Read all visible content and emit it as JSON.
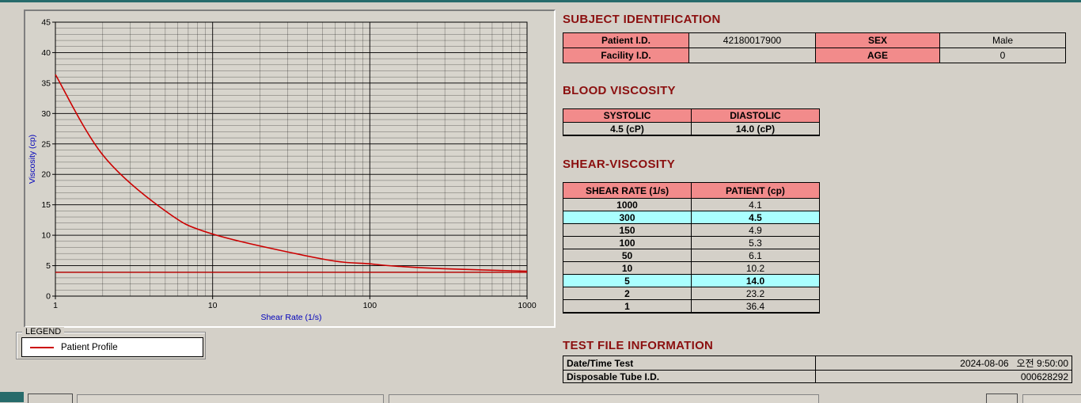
{
  "colors": {
    "section_title": "#8b0f0f",
    "table_header_bg": "#f28b8b",
    "highlight_bg": "#aaffff",
    "curve_red": "#cc0000",
    "axis_label_blue": "#0000bb",
    "window_bg": "#d4d0c8",
    "edge_teal": "#276b6b"
  },
  "legend": {
    "box_label": "LEGEND",
    "series_label": "Patient Profile"
  },
  "subject_identification": {
    "title": "SUBJECT IDENTIFICATION",
    "rows": [
      {
        "label1": "Patient I.D.",
        "value1": "42180017900",
        "label2": "SEX",
        "value2": "Male"
      },
      {
        "label1": "Facility I.D.",
        "value1": "",
        "label2": "AGE",
        "value2": "0"
      }
    ]
  },
  "blood_viscosity": {
    "title": "BLOOD VISCOSITY",
    "headers": [
      "SYSTOLIC",
      "DIASTOLIC"
    ],
    "values": [
      "4.5 (cP)",
      "14.0 (cP)"
    ]
  },
  "shear_viscosity": {
    "title": "SHEAR-VISCOSITY",
    "headers": [
      "SHEAR RATE (1/s)",
      "PATIENT (cp)"
    ],
    "rows": [
      {
        "rate": "1000",
        "value": "4.1",
        "highlight": false
      },
      {
        "rate": "300",
        "value": "4.5",
        "highlight": true
      },
      {
        "rate": "150",
        "value": "4.9",
        "highlight": false
      },
      {
        "rate": "100",
        "value": "5.3",
        "highlight": false
      },
      {
        "rate": "50",
        "value": "6.1",
        "highlight": false
      },
      {
        "rate": "10",
        "value": "10.2",
        "highlight": false
      },
      {
        "rate": "5",
        "value": "14.0",
        "highlight": true
      },
      {
        "rate": "2",
        "value": "23.2",
        "highlight": false
      },
      {
        "rate": "1",
        "value": "36.4",
        "highlight": false
      }
    ]
  },
  "test_file_information": {
    "title": "TEST FILE INFORMATION",
    "rows": [
      {
        "label": "Date/Time Test",
        "value": "2024-08-06   오전 9:50:00"
      },
      {
        "label": "Disposable Tube I.D.",
        "value": "000628292"
      }
    ]
  },
  "chart_data": {
    "type": "line",
    "x_scale": "log",
    "x": [
      1,
      2,
      5,
      10,
      50,
      100,
      150,
      300,
      1000
    ],
    "y": [
      36.4,
      23.2,
      14.0,
      10.2,
      6.1,
      5.3,
      4.9,
      4.5,
      4.1
    ],
    "series_name": "Patient Profile",
    "reference_line_y": 3.9,
    "title": "",
    "xlabel": "Shear Rate (1/s)",
    "ylabel": "Viscosity (cp)",
    "xlim": [
      1,
      1000
    ],
    "ylim": [
      0,
      45
    ],
    "x_ticks": [
      1,
      10,
      100,
      1000
    ],
    "y_ticks": [
      0,
      5,
      10,
      15,
      20,
      25,
      30,
      35,
      40,
      45
    ],
    "grid": "dense: minor y every 1 unit, log-decade minors on x",
    "legend_position": "outside-bottom-left",
    "line_color": "#cc0000",
    "axis_label_color": "#0000bb"
  }
}
